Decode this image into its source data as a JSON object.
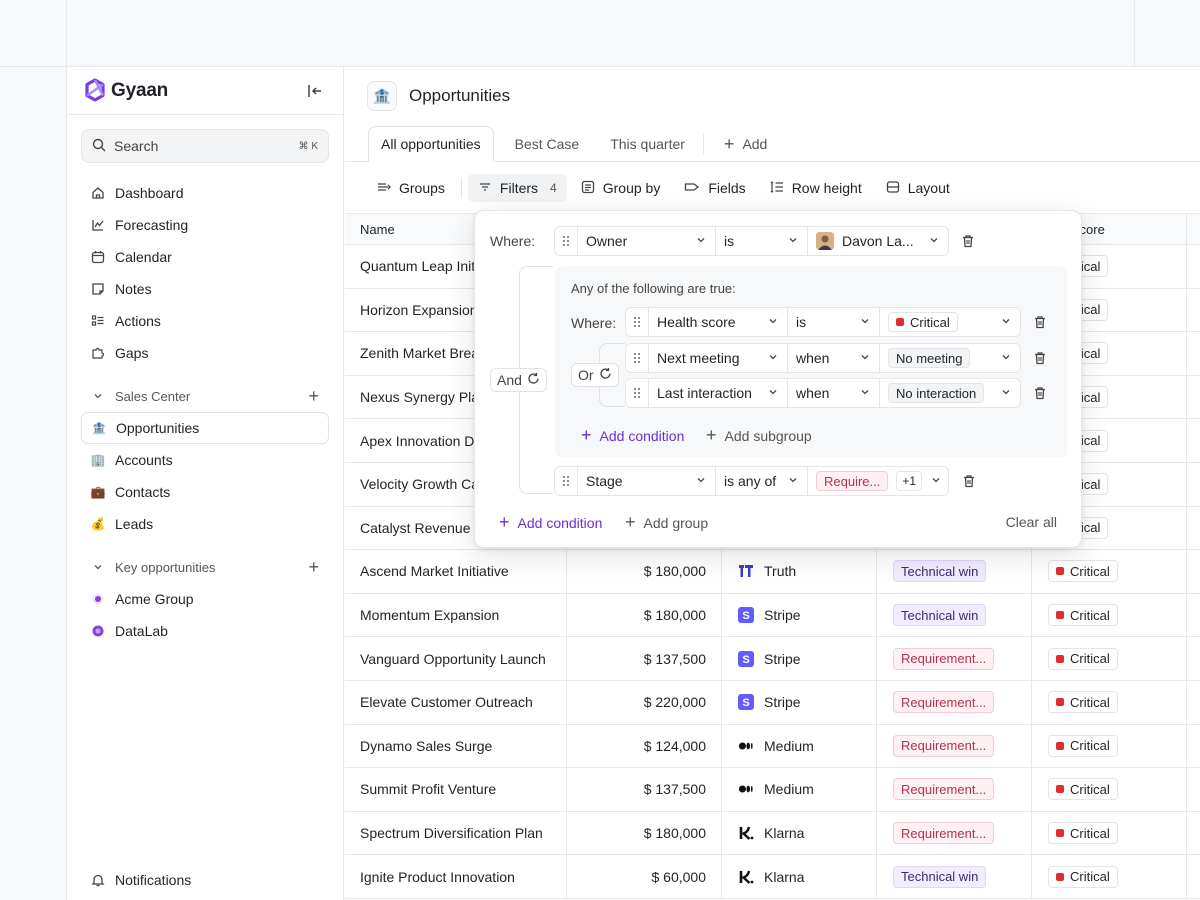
{
  "app": {
    "brand": "Gyaan",
    "accent": "#6b2fd1",
    "search": {
      "placeholder": "Search",
      "shortcut": "⌘ K"
    }
  },
  "sidebar": {
    "nav": [
      {
        "label": "Dashboard",
        "icon": "home-icon"
      },
      {
        "label": "Forecasting",
        "icon": "chart-icon"
      },
      {
        "label": "Calendar",
        "icon": "calendar-icon"
      },
      {
        "label": "Notes",
        "icon": "note-icon"
      },
      {
        "label": "Actions",
        "icon": "checklist-icon"
      },
      {
        "label": "Gaps",
        "icon": "puzzle-icon"
      }
    ],
    "sales_center": {
      "label": "Sales Center",
      "items": [
        {
          "label": "Opportunities",
          "icon": "bank-emoji-icon",
          "active": true
        },
        {
          "label": "Accounts",
          "icon": "building-emoji-icon"
        },
        {
          "label": "Contacts",
          "icon": "briefcase-emoji-icon"
        },
        {
          "label": "Leads",
          "icon": "moneybag-emoji-icon"
        }
      ]
    },
    "key_opportunities": {
      "label": "Key opportunities",
      "items": [
        {
          "label": "Acme Group",
          "color": "#8b3fe0"
        },
        {
          "label": "DataLab",
          "color": "#8b3fe0"
        }
      ]
    },
    "notifications": "Notifications"
  },
  "page": {
    "title": "Opportunities",
    "icon": "🏦",
    "tabs": [
      "All opportunities",
      "Best Case",
      "This quarter"
    ],
    "add_tab": "Add"
  },
  "toolbar": {
    "groups": "Groups",
    "filters": "Filters",
    "filters_count": "4",
    "group_by": "Group by",
    "fields": "Fields",
    "row_height": "Row height",
    "layout": "Layout"
  },
  "table": {
    "headers": {
      "name": "Name",
      "health": "n Score"
    },
    "rows": [
      {
        "name": "Quantum Leap Initi",
        "amount": "",
        "company": "",
        "logo": "",
        "stage": "",
        "stage_type": "",
        "health": "ritical"
      },
      {
        "name": "Horizon Expansion",
        "amount": "",
        "company": "",
        "logo": "",
        "stage": "",
        "stage_type": "",
        "health": "ritical"
      },
      {
        "name": "Zenith Market Brea",
        "amount": "",
        "company": "",
        "logo": "",
        "stage": "",
        "stage_type": "",
        "health": "ritical"
      },
      {
        "name": "Nexus Synergy Pla",
        "amount": "",
        "company": "",
        "logo": "",
        "stage": "",
        "stage_type": "",
        "health": "ritical"
      },
      {
        "name": "Apex Innovation Dr",
        "amount": "",
        "company": "",
        "logo": "",
        "stage": "",
        "stage_type": "",
        "health": "ritical"
      },
      {
        "name": "Velocity Growth Ca",
        "amount": "",
        "company": "",
        "logo": "",
        "stage": "",
        "stage_type": "",
        "health": "ritical"
      },
      {
        "name": "Catalyst Revenue E",
        "amount": "",
        "company": "",
        "logo": "",
        "stage": "",
        "stage_type": "",
        "health": "ritical"
      },
      {
        "name": "Ascend Market Initiative",
        "amount": "$ 180,000",
        "company": "Truth",
        "logo": "truth",
        "stage": "Technical win",
        "stage_type": "tech",
        "health": "Critical"
      },
      {
        "name": "Momentum Expansion",
        "amount": "$ 180,000",
        "company": "Stripe",
        "logo": "stripe",
        "stage": "Technical win",
        "stage_type": "tech",
        "health": "Critical"
      },
      {
        "name": "Vanguard Opportunity Launch",
        "amount": "$ 137,500",
        "company": "Stripe",
        "logo": "stripe",
        "stage": "Requirement...",
        "stage_type": "req",
        "health": "Critical"
      },
      {
        "name": "Elevate Customer Outreach",
        "amount": "$ 220,000",
        "company": "Stripe",
        "logo": "stripe",
        "stage": "Requirement...",
        "stage_type": "req",
        "health": "Critical"
      },
      {
        "name": "Dynamo Sales Surge",
        "amount": "$ 124,000",
        "company": "Medium",
        "logo": "medium",
        "stage": "Requirement...",
        "stage_type": "req",
        "health": "Critical"
      },
      {
        "name": "Summit Profit Venture",
        "amount": "$ 137,500",
        "company": "Medium",
        "logo": "medium",
        "stage": "Requirement...",
        "stage_type": "req",
        "health": "Critical"
      },
      {
        "name": "Spectrum Diversification Plan",
        "amount": "$ 180,000",
        "company": "Klarna",
        "logo": "klarna",
        "stage": "Requirement...",
        "stage_type": "req",
        "health": "Critical"
      },
      {
        "name": "Ignite Product Innovation",
        "amount": "$ 60,000",
        "company": "Klarna",
        "logo": "klarna",
        "stage": "Technical win",
        "stage_type": "tech",
        "health": "Critical"
      }
    ]
  },
  "filter": {
    "where": "Where:",
    "owner_field": "Owner",
    "owner_op": "is",
    "owner_value": "Davon La...",
    "and_label": "And",
    "group_title": "Any of the following are true:",
    "group_where": "Where:",
    "or_label": "Or",
    "conditions": [
      {
        "field": "Health score",
        "op": "is",
        "value": "Critical",
        "value_style": "critical"
      },
      {
        "field": "Next meeting",
        "op": "when",
        "value": "No meeting",
        "value_style": "plain"
      },
      {
        "field": "Last interaction",
        "op": "when",
        "value": "No interaction",
        "value_style": "plain"
      }
    ],
    "add_condition_inner": "Add condition",
    "add_subgroup": "Add subgroup",
    "stage_field": "Stage",
    "stage_op": "is any of",
    "stage_value": "Require...",
    "stage_more": "+1",
    "add_condition": "Add condition",
    "add_group": "Add group",
    "clear_all": "Clear all"
  }
}
